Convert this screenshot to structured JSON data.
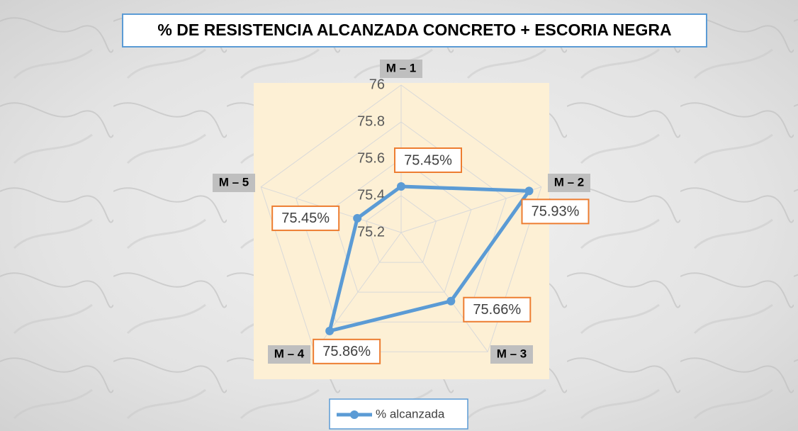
{
  "chart_data": {
    "type": "radar",
    "title": "% DE RESISTENCIA ALCANZADA CONCRETO + ESCORIA NEGRA",
    "categories": [
      "M – 1",
      "M – 2",
      "M – 3",
      "M – 4",
      "M – 5"
    ],
    "series": [
      {
        "name": "% alcanzada",
        "color": "#5b9bd5",
        "values": [
          75.45,
          75.93,
          75.66,
          75.86,
          75.45
        ],
        "value_labels": [
          "75.45%",
          "75.93%",
          "75.66%",
          "75.86%",
          "75.45%"
        ]
      }
    ],
    "ylim": [
      75.2,
      76
    ],
    "yticks": [
      75.2,
      75.4,
      75.6,
      75.8,
      76
    ],
    "grid": true,
    "legend": "bottom"
  }
}
